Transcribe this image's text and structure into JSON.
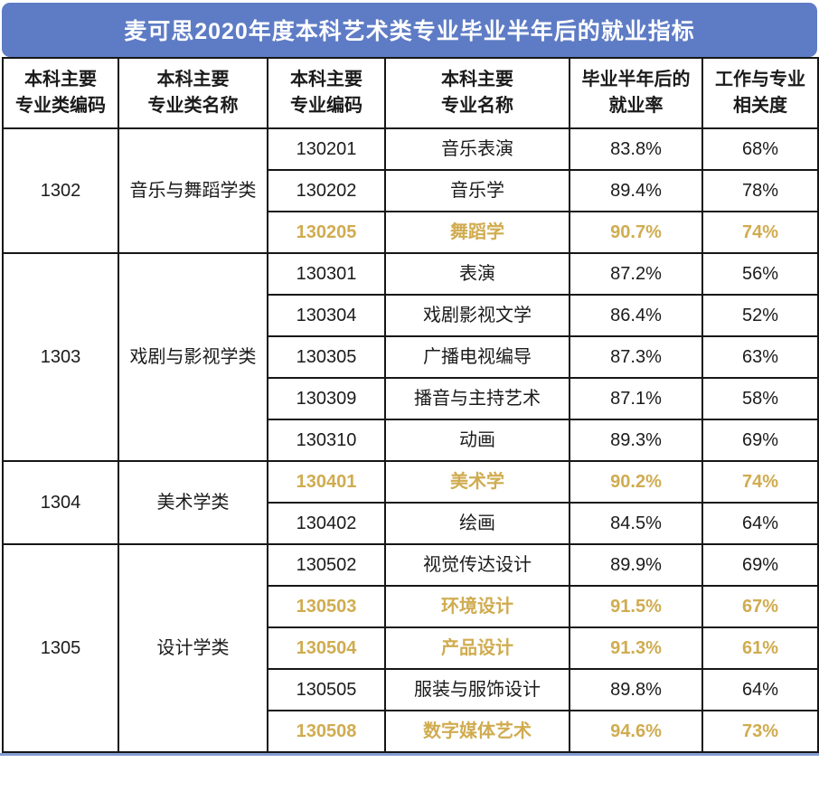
{
  "title": "麦可思2020年度本科艺术类专业毕业半年后的就业指标",
  "colors": {
    "title_bar": "#5e7cc5",
    "highlight": "#d0ac50",
    "text": "#1b1b1b",
    "border": "#161616"
  },
  "table": {
    "headers": [
      {
        "label": "本科主要\n专业类编码"
      },
      {
        "label": "本科主要\n专业类名称"
      },
      {
        "label": "本科主要\n专业编码"
      },
      {
        "label": "本科主要\n专业名称"
      },
      {
        "label": "毕业半年后的\n就业率"
      },
      {
        "label": "工作与专业\n相关度"
      }
    ],
    "groups": [
      {
        "category_code": "1302",
        "category_name": "音乐与舞蹈学类",
        "majors": [
          {
            "code": "130201",
            "name": "音乐表演",
            "employment_rate": "83.8%",
            "relevance": "68%",
            "highlight": false
          },
          {
            "code": "130202",
            "name": "音乐学",
            "employment_rate": "89.4%",
            "relevance": "78%",
            "highlight": false
          },
          {
            "code": "130205",
            "name": "舞蹈学",
            "employment_rate": "90.7%",
            "relevance": "74%",
            "highlight": true
          }
        ]
      },
      {
        "category_code": "1303",
        "category_name": "戏剧与影视学类",
        "majors": [
          {
            "code": "130301",
            "name": "表演",
            "employment_rate": "87.2%",
            "relevance": "56%",
            "highlight": false
          },
          {
            "code": "130304",
            "name": "戏剧影视文学",
            "employment_rate": "86.4%",
            "relevance": "52%",
            "highlight": false
          },
          {
            "code": "130305",
            "name": "广播电视编导",
            "employment_rate": "87.3%",
            "relevance": "63%",
            "highlight": false
          },
          {
            "code": "130309",
            "name": "播音与主持艺术",
            "employment_rate": "87.1%",
            "relevance": "58%",
            "highlight": false
          },
          {
            "code": "130310",
            "name": "动画",
            "employment_rate": "89.3%",
            "relevance": "69%",
            "highlight": false
          }
        ]
      },
      {
        "category_code": "1304",
        "category_name": "美术学类",
        "majors": [
          {
            "code": "130401",
            "name": "美术学",
            "employment_rate": "90.2%",
            "relevance": "74%",
            "highlight": true
          },
          {
            "code": "130402",
            "name": "绘画",
            "employment_rate": "84.5%",
            "relevance": "64%",
            "highlight": false
          }
        ]
      },
      {
        "category_code": "1305",
        "category_name": "设计学类",
        "majors": [
          {
            "code": "130502",
            "name": "视觉传达设计",
            "employment_rate": "89.9%",
            "relevance": "69%",
            "highlight": false
          },
          {
            "code": "130503",
            "name": "环境设计",
            "employment_rate": "91.5%",
            "relevance": "67%",
            "highlight": true
          },
          {
            "code": "130504",
            "name": "产品设计",
            "employment_rate": "91.3%",
            "relevance": "61%",
            "highlight": true
          },
          {
            "code": "130505",
            "name": "服装与服饰设计",
            "employment_rate": "89.8%",
            "relevance": "64%",
            "highlight": false
          },
          {
            "code": "130508",
            "name": "数字媒体艺术",
            "employment_rate": "94.6%",
            "relevance": "73%",
            "highlight": true
          }
        ]
      }
    ]
  },
  "chart_data": {
    "type": "table",
    "title": "麦可思2020年度本科艺术类专业毕业半年后的就业指标",
    "columns": [
      "本科主要专业类编码",
      "本科主要专业类名称",
      "本科主要专业编码",
      "本科主要专业名称",
      "毕业半年后的就业率",
      "工作与专业相关度"
    ],
    "rows": [
      [
        "1302",
        "音乐与舞蹈学类",
        "130201",
        "音乐表演",
        "83.8%",
        "68%"
      ],
      [
        "1302",
        "音乐与舞蹈学类",
        "130202",
        "音乐学",
        "89.4%",
        "78%"
      ],
      [
        "1302",
        "音乐与舞蹈学类",
        "130205",
        "舞蹈学",
        "90.7%",
        "74%"
      ],
      [
        "1303",
        "戏剧与影视学类",
        "130301",
        "表演",
        "87.2%",
        "56%"
      ],
      [
        "1303",
        "戏剧与影视学类",
        "130304",
        "戏剧影视文学",
        "86.4%",
        "52%"
      ],
      [
        "1303",
        "戏剧与影视学类",
        "130305",
        "广播电视编导",
        "87.3%",
        "63%"
      ],
      [
        "1303",
        "戏剧与影视学类",
        "130309",
        "播音与主持艺术",
        "87.1%",
        "58%"
      ],
      [
        "1303",
        "戏剧与影视学类",
        "130310",
        "动画",
        "89.3%",
        "69%"
      ],
      [
        "1304",
        "美术学类",
        "130401",
        "美术学",
        "90.2%",
        "74%"
      ],
      [
        "1304",
        "美术学类",
        "130402",
        "绘画",
        "84.5%",
        "64%"
      ],
      [
        "1305",
        "设计学类",
        "130502",
        "视觉传达设计",
        "89.9%",
        "69%"
      ],
      [
        "1305",
        "设计学类",
        "130503",
        "环境设计",
        "91.5%",
        "67%"
      ],
      [
        "1305",
        "设计学类",
        "130504",
        "产品设计",
        "91.3%",
        "61%"
      ],
      [
        "1305",
        "设计学类",
        "130505",
        "服装与服饰设计",
        "89.8%",
        "64%"
      ],
      [
        "1305",
        "设计学类",
        "130508",
        "数字媒体艺术",
        "94.6%",
        "73%"
      ]
    ],
    "highlighted_row_indices": [
      2,
      8,
      11,
      12,
      14
    ],
    "highlight_color": "#d0ac50"
  }
}
